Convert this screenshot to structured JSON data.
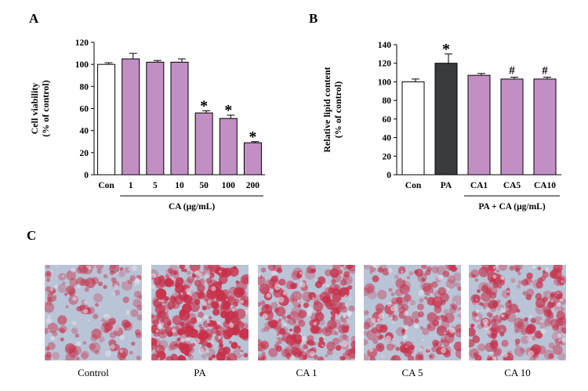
{
  "panels": {
    "a": "A",
    "b": "B",
    "c": "C"
  },
  "chart_data": [
    {
      "type": "bar",
      "panel": "A",
      "categories": [
        "Con",
        "1",
        "5",
        "10",
        "50",
        "100",
        "200"
      ],
      "values": [
        100,
        105,
        102,
        102,
        56,
        51,
        29
      ],
      "errors": [
        1.5,
        5,
        1.5,
        3,
        2,
        3,
        1
      ],
      "significance": [
        "",
        "",
        "",
        "",
        "*",
        "*",
        "*"
      ],
      "bar_colors": [
        "#ffffff",
        "#c28fc4",
        "#c28fc4",
        "#c28fc4",
        "#c28fc4",
        "#c28fc4",
        "#c28fc4"
      ],
      "ylabel_line1": "Cell viability",
      "ylabel_line2": "(% of control)",
      "group_label": "CA (μg/mL)",
      "ylim": [
        0,
        120
      ],
      "yticks": [
        0,
        20,
        40,
        60,
        80,
        100,
        120
      ]
    },
    {
      "type": "bar",
      "panel": "B",
      "categories": [
        "Con",
        "PA",
        "CA1",
        "CA5",
        "CA10"
      ],
      "values": [
        100,
        120,
        107,
        103,
        103
      ],
      "errors": [
        3,
        10,
        2,
        2,
        2
      ],
      "significance": [
        "",
        "*",
        "",
        "#",
        "#"
      ],
      "bar_colors": [
        "#ffffff",
        "#3a3b3d",
        "#c28fc4",
        "#c28fc4",
        "#c28fc4"
      ],
      "ylabel_line1": "Relative lipid content",
      "ylabel_line2": "(% of control)",
      "group_label": "PA + CA (μg/mL)",
      "ylim": [
        0,
        140
      ],
      "yticks": [
        0,
        20,
        40,
        60,
        80,
        100,
        120,
        140
      ]
    }
  ],
  "images": {
    "captions": [
      "Control",
      "PA",
      "CA 1",
      "CA 5",
      "CA 10"
    ],
    "stain_density": [
      0.25,
      0.85,
      0.6,
      0.45,
      0.5
    ],
    "stain_color": "#c8304a",
    "background_color": "#b9c4d6"
  }
}
